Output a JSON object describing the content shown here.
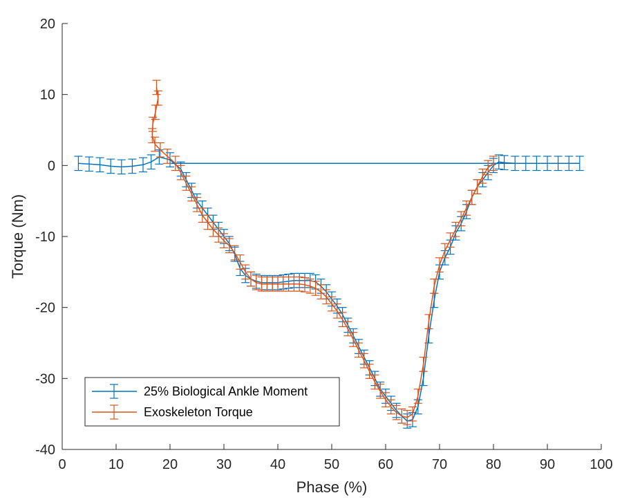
{
  "chart_data": {
    "type": "line",
    "title": "",
    "xlabel": "Phase (%)",
    "ylabel": "Torque (Nm)",
    "xlim": [
      0,
      100
    ],
    "ylim": [
      -40,
      20
    ],
    "xticks": [
      "0",
      "10",
      "20",
      "30",
      "40",
      "50",
      "60",
      "70",
      "80",
      "90",
      "100"
    ],
    "yticks": [
      "20",
      "10",
      "0",
      "-10",
      "-20",
      "-30",
      "-40"
    ],
    "grid": false,
    "legend_position": "bottom-left",
    "series": [
      {
        "name": "25% Biological Ankle Moment",
        "color": "#0072BD",
        "x": [
          3,
          5,
          7,
          9,
          11,
          13,
          15,
          16.5,
          18,
          20,
          22,
          23,
          24,
          25,
          26,
          27,
          28,
          29,
          30,
          31,
          32,
          33,
          34,
          35,
          36,
          37,
          38,
          39,
          40,
          41,
          42,
          43,
          44,
          45,
          46,
          47,
          48,
          49,
          50,
          51,
          52,
          53,
          54,
          55,
          56,
          57,
          58,
          59,
          60,
          61,
          62,
          63,
          64,
          65,
          66,
          67,
          68,
          69,
          70,
          71,
          72,
          73,
          74,
          75,
          76,
          77,
          78,
          79,
          80,
          81,
          82,
          84,
          86,
          88,
          90,
          92,
          94,
          96
        ],
        "y": [
          0.3,
          0.2,
          0.1,
          -0.1,
          -0.2,
          -0.1,
          0.1,
          0.5,
          1.2,
          0.8,
          -0.5,
          -2,
          -3.5,
          -5,
          -6,
          -7,
          -8,
          -9,
          -10,
          -11,
          -12.5,
          -14.5,
          -15.5,
          -16,
          -16.3,
          -16.5,
          -16.5,
          -16.5,
          -16.5,
          -16.4,
          -16.3,
          -16.2,
          -16.2,
          -16.2,
          -16.2,
          -16.4,
          -17,
          -17.8,
          -18.8,
          -19.8,
          -21,
          -22.5,
          -24,
          -25.5,
          -27,
          -28.5,
          -30,
          -31.5,
          -32.5,
          -33.5,
          -34.5,
          -35.3,
          -36,
          -35.8,
          -34,
          -30,
          -24,
          -19,
          -15,
          -13,
          -11.5,
          -9.5,
          -8.2,
          -6.5,
          -4.5,
          -3,
          -2,
          -1,
          0,
          0.5,
          0.4,
          0.3,
          0.3,
          0.3,
          0.3,
          0.3,
          0.3,
          0.3
        ]
      },
      {
        "name": "Exoskeleton Torque",
        "color": "#D95319",
        "x": [
          17.5,
          17.8,
          17.3,
          16.8,
          16.7,
          17.2,
          18.2,
          19.5,
          21,
          22,
          23,
          24,
          25,
          26,
          27,
          28,
          29,
          30,
          31,
          32,
          33,
          34,
          35,
          36,
          37,
          38,
          39,
          40,
          41,
          42,
          43,
          44,
          45,
          46,
          47,
          48,
          49,
          50,
          51,
          52,
          53,
          54,
          55,
          56,
          57,
          58,
          59,
          60,
          61,
          62,
          63,
          64,
          65,
          66,
          67,
          68,
          69,
          70,
          71,
          72,
          73,
          74,
          75,
          76,
          77,
          78,
          79,
          80
        ],
        "y": [
          11,
          9.5,
          7.5,
          5.8,
          4.2,
          3,
          2.2,
          1.3,
          0.3,
          -1,
          -2.5,
          -4,
          -5.5,
          -7,
          -8,
          -9,
          -9.8,
          -10.6,
          -11.3,
          -12.3,
          -13.6,
          -15,
          -16,
          -16.5,
          -16.7,
          -16.7,
          -16.7,
          -16.7,
          -16.7,
          -16.7,
          -16.7,
          -16.7,
          -16.8,
          -17,
          -17.3,
          -17.8,
          -18.5,
          -19.5,
          -20.5,
          -21.7,
          -23,
          -24.5,
          -26,
          -27.5,
          -29,
          -30.5,
          -31.8,
          -33,
          -34,
          -34.8,
          -35.3,
          -35.5,
          -35,
          -32.5,
          -28,
          -22,
          -17,
          -14,
          -12,
          -10.5,
          -9,
          -7.5,
          -6,
          -4.5,
          -3,
          -1.5,
          -0.3,
          0.3
        ]
      }
    ],
    "flat_series_name": "25% Biological Ankle Moment"
  }
}
